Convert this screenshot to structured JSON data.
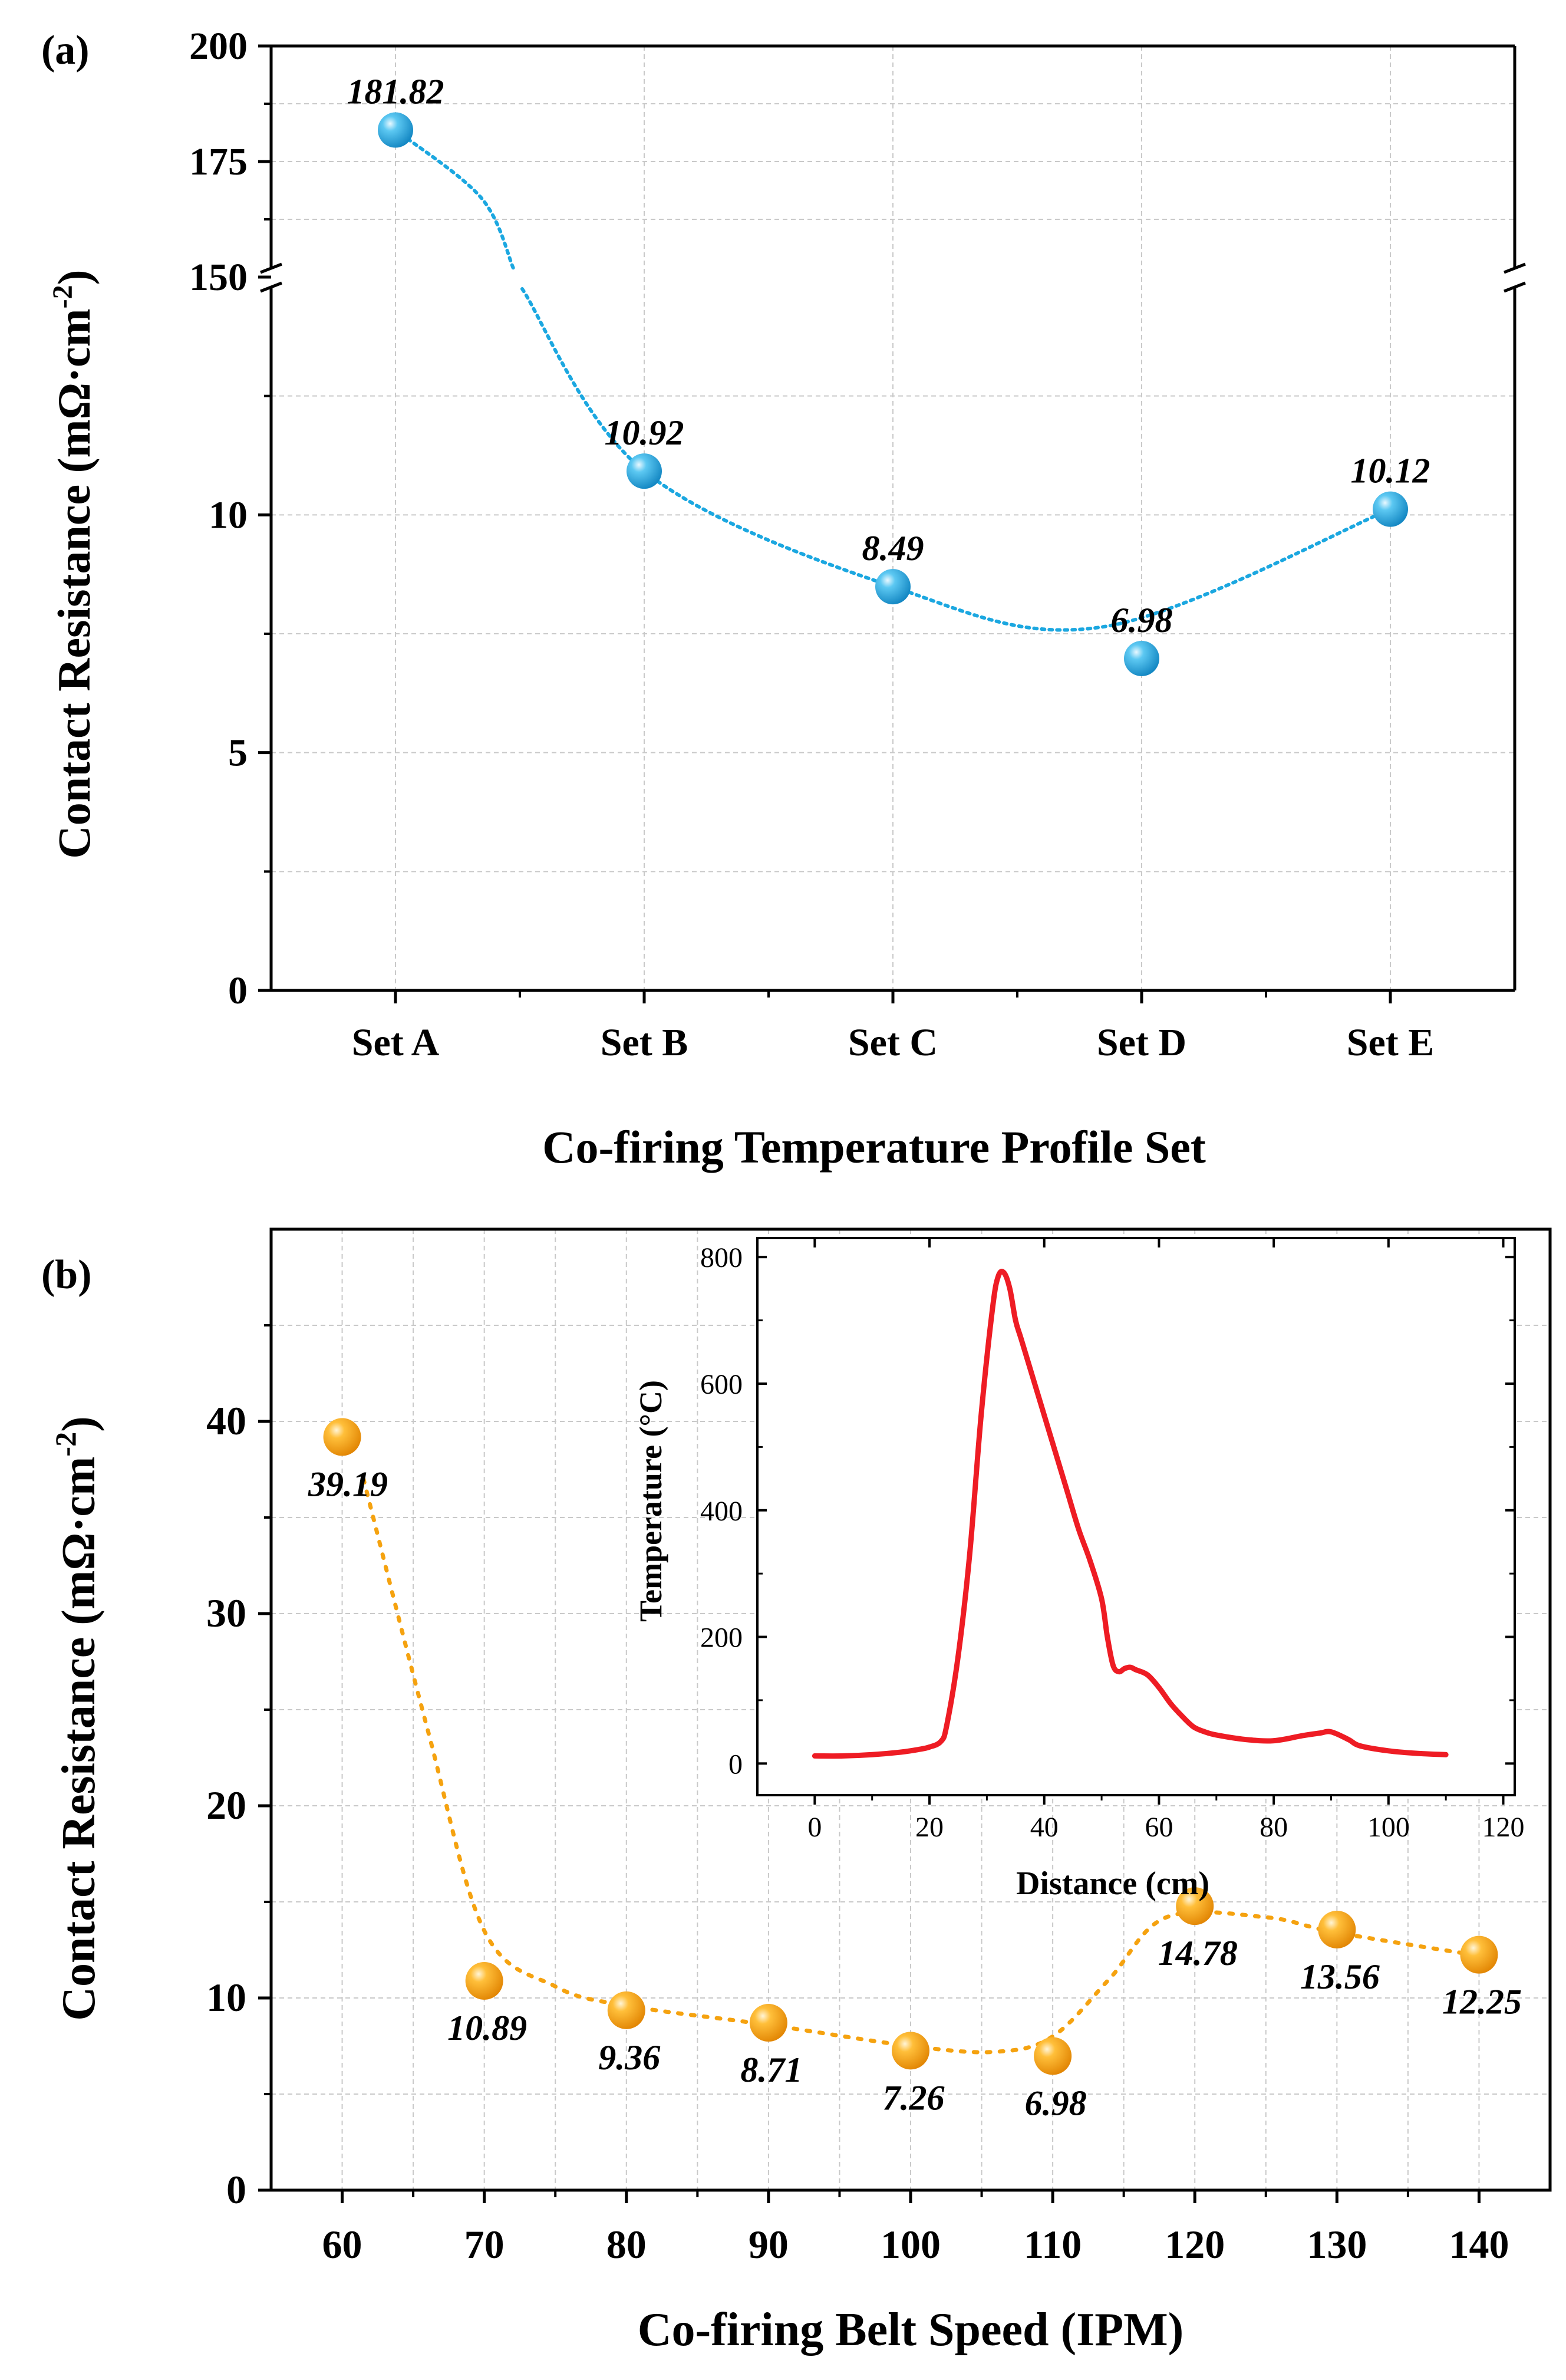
{
  "figure": {
    "panel_a_letter": "(a)",
    "panel_b_letter": "(b)"
  },
  "chart_data": [
    {
      "id": "panel-a",
      "type": "scatter",
      "title": "",
      "xlabel": "Co-firing Temperature Profile Set",
      "ylabel": "Contact Resistance (mΩ·cm",
      "ylabel_sup": "-2",
      "ylabel_tail": ")",
      "categories": [
        "Set A",
        "Set B",
        "Set C",
        "Set D",
        "Set E"
      ],
      "values": [
        181.82,
        10.92,
        8.49,
        6.98,
        10.12
      ],
      "value_labels": [
        "181.82",
        "10.92",
        "8.49",
        "6.98",
        "10.12"
      ],
      "y_axis_break": {
        "lower_range": [
          0,
          15
        ],
        "upper_range": [
          150,
          200
        ]
      },
      "yticks_lower": [
        0,
        5,
        10
      ],
      "yticks_upper": [
        150,
        175,
        200
      ],
      "ytick_labels_lower": [
        "0",
        "5",
        "10"
      ],
      "ytick_labels_upper": [
        "150",
        "175",
        "200"
      ],
      "grid": true,
      "marker_color": "#1ba7e0",
      "fit_line_color": "#1ba7e0",
      "fit_line_style": "dotted"
    },
    {
      "id": "panel-b",
      "type": "scatter",
      "title": "",
      "xlabel": "Co-firing Belt Speed (IPM)",
      "ylabel": "Contact Resistance (mΩ·cm",
      "ylabel_sup": "-2",
      "ylabel_tail": ")",
      "x": [
        60,
        70,
        80,
        90,
        100,
        110,
        120,
        130,
        140
      ],
      "values": [
        39.19,
        10.89,
        9.36,
        8.71,
        7.26,
        6.98,
        14.78,
        13.56,
        12.25
      ],
      "value_labels": [
        "39.19",
        "10.89",
        "9.36",
        "8.71",
        "7.26",
        "6.98",
        "14.78",
        "13.56",
        "12.25"
      ],
      "xlim": [
        55,
        145
      ],
      "ylim": [
        0,
        50
      ],
      "xticks": [
        60,
        70,
        80,
        90,
        100,
        110,
        120,
        130,
        140
      ],
      "xtick_labels": [
        "60",
        "70",
        "80",
        "90",
        "100",
        "110",
        "120",
        "130",
        "140"
      ],
      "yticks": [
        0,
        10,
        20,
        30,
        40
      ],
      "ytick_labels": [
        "0",
        "10",
        "20",
        "30",
        "40"
      ],
      "grid": true,
      "marker_color": "#f5a20f",
      "fit_line_color": "#f5a20f",
      "fit_line_style": "dotted",
      "inset": {
        "type": "line",
        "xlabel": "Distance (cm)",
        "ylabel": "Temperature (°C)",
        "xlim": [
          -10,
          122
        ],
        "ylim": [
          -50,
          830
        ],
        "xticks": [
          0,
          20,
          40,
          60,
          80,
          100,
          120
        ],
        "xtick_labels": [
          "0",
          "20",
          "40",
          "60",
          "80",
          "100",
          "120"
        ],
        "yticks": [
          0,
          200,
          400,
          600,
          800
        ],
        "ytick_labels": [
          "0",
          "200",
          "400",
          "600",
          "800"
        ],
        "line_color": "#ee1c24",
        "x": [
          0,
          5,
          10,
          15,
          18,
          20,
          22,
          23,
          25,
          27,
          29,
          31,
          32,
          33,
          34,
          35,
          36,
          38,
          40,
          42,
          44,
          46,
          48,
          50,
          51,
          52,
          53,
          54,
          55,
          56,
          58,
          60,
          62,
          64,
          66,
          68,
          70,
          75,
          80,
          85,
          88,
          90,
          93,
          95,
          100,
          105,
          110
        ],
        "y": [
          12,
          12,
          14,
          18,
          22,
          26,
          35,
          60,
          170,
          330,
          550,
          720,
          770,
          775,
          750,
          700,
          670,
          610,
          550,
          490,
          430,
          370,
          320,
          260,
          200,
          155,
          145,
          150,
          152,
          148,
          140,
          120,
          95,
          75,
          58,
          50,
          45,
          38,
          36,
          44,
          48,
          50,
          38,
          28,
          20,
          16,
          14
        ]
      }
    }
  ]
}
